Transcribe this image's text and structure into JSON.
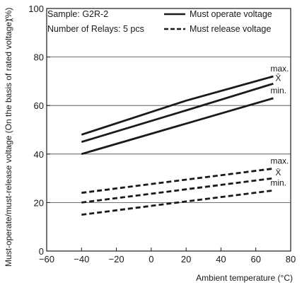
{
  "chart_data": {
    "type": "line",
    "title": "",
    "xlabel": "Ambient temperature (°C)",
    "ylabel": "Must-operate/must-release voltage (On the basis of rated voltage)",
    "yunit": "(%)",
    "xlim": [
      -60,
      80
    ],
    "ylim": [
      0,
      100
    ],
    "xticks": [
      -60,
      -40,
      -20,
      0,
      20,
      40,
      60,
      80
    ],
    "yticks": [
      0,
      20,
      40,
      60,
      80,
      100
    ],
    "xtick_labels": [
      "−60",
      "−40",
      "−20",
      "0",
      "20",
      "40",
      "60",
      "80"
    ],
    "ytick_labels": [
      "0",
      "20",
      "40",
      "60",
      "80",
      "100"
    ],
    "sample_text": "Sample: G2R-2",
    "relays_text": "Number of Relays: 5 pcs",
    "legend": {
      "placement": "top-right",
      "entries": [
        {
          "label": "Must operate voltage",
          "style": "solid"
        },
        {
          "label": "Must release voltage",
          "style": "dashed"
        }
      ]
    },
    "series": [
      {
        "group": "Must operate voltage",
        "stat": "max.",
        "style": "solid",
        "x": [
          -40,
          20,
          70
        ],
        "y": [
          48,
          62,
          72
        ]
      },
      {
        "group": "Must operate voltage",
        "stat": "X̄",
        "style": "solid",
        "x": [
          -40,
          20,
          70
        ],
        "y": [
          45,
          58,
          69
        ]
      },
      {
        "group": "Must operate voltage",
        "stat": "min.",
        "style": "solid",
        "x": [
          -40,
          70
        ],
        "y": [
          40,
          63
        ]
      },
      {
        "group": "Must release voltage",
        "stat": "max.",
        "style": "dashed",
        "x": [
          -40,
          70
        ],
        "y": [
          24,
          34
        ]
      },
      {
        "group": "Must release voltage",
        "stat": "X̄",
        "style": "dashed",
        "x": [
          -40,
          70
        ],
        "y": [
          20,
          30
        ]
      },
      {
        "group": "Must release voltage",
        "stat": "min.",
        "style": "dashed",
        "x": [
          -40,
          70
        ],
        "y": [
          15,
          25
        ]
      }
    ],
    "annotations": [
      {
        "text": "max.",
        "x": 70,
        "y": 72
      },
      {
        "text": "X̄",
        "x": 70,
        "y": 69
      },
      {
        "text": "min.",
        "x": 70,
        "y": 63
      },
      {
        "text": "max.",
        "x": 70,
        "y": 34
      },
      {
        "text": "X̄",
        "x": 70,
        "y": 30
      },
      {
        "text": "min.",
        "x": 70,
        "y": 25
      }
    ],
    "grid": {
      "horizontal": true,
      "vertical": false
    },
    "colors": {
      "lines": "#1a1a1a",
      "grid": "#444444",
      "background": "#ffffff"
    }
  }
}
